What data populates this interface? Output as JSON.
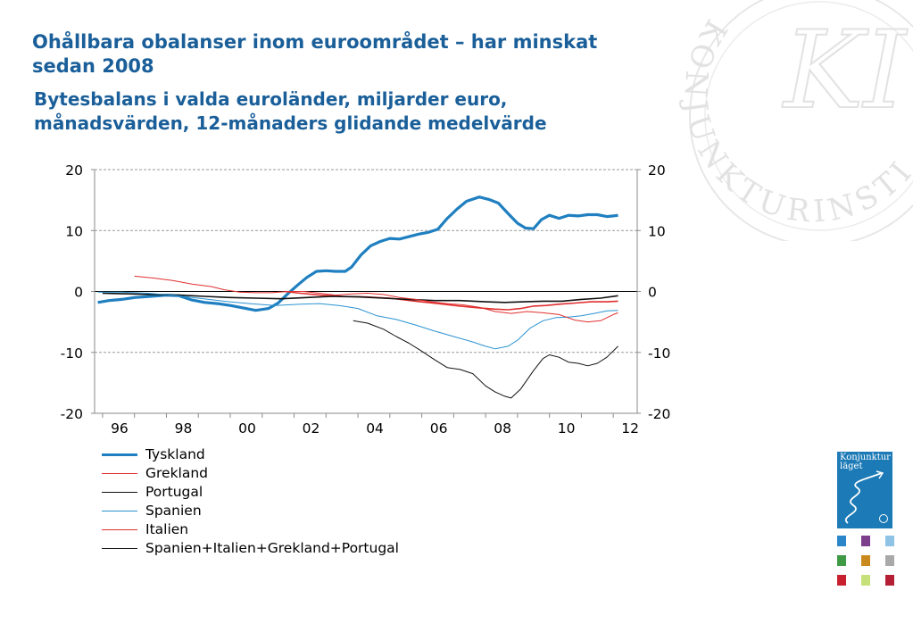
{
  "header": {
    "title": "Ohållbara obalanser inom euroområdet – har minskat sedan 2008",
    "subtitle": "Bytesbalans i valda euroländer, miljarder euro, månadsvärden, 12-månaders glidande medelvärde"
  },
  "branding": {
    "watermark_text": "KONJUNKTURINSTITUTET",
    "watermark_monogram": "KI",
    "report_cover_title_line1": "Konjunktur",
    "report_cover_title_line2": "läget",
    "report_cover_color": "#1c7ab6",
    "mini_cover_colors": [
      "#2a86c8",
      "#7b3f8c",
      "#8fc3e6",
      "#3f9a45",
      "#c9891c",
      "#a9a9a9",
      "#c8202f",
      "#c6e07a",
      "#b51f36"
    ]
  },
  "chart_data": {
    "type": "line",
    "title": "",
    "xlabel": "",
    "ylabel": "",
    "xlim": [
      1995.75,
      2012.75
    ],
    "ylim": [
      -20,
      20
    ],
    "y_ticks": [
      "20",
      "10",
      "0",
      "-10",
      "-20"
    ],
    "y_ticks_right": [
      "20",
      "10",
      "0",
      "-10",
      "-20"
    ],
    "x_tick_labels": [
      {
        "label": "96",
        "x": 1996
      },
      {
        "label": "98",
        "x": 1998
      },
      {
        "label": "00",
        "x": 2000
      },
      {
        "label": "02",
        "x": 2002
      },
      {
        "label": "04",
        "x": 2004
      },
      {
        "label": "06",
        "x": 2006
      },
      {
        "label": "08",
        "x": 2008
      },
      {
        "label": "10",
        "x": 2010
      },
      {
        "label": "12",
        "x": 2012
      }
    ],
    "grid": true,
    "legend_position": "bottom-left",
    "series": [
      {
        "name": "Tyskland",
        "color": "#1f7fc0",
        "line": "thick",
        "points": [
          [
            1995.85,
            -1.8
          ],
          [
            1996.2,
            -1.5
          ],
          [
            1996.6,
            -1.3
          ],
          [
            1997.0,
            -1.0
          ],
          [
            1997.5,
            -0.8
          ],
          [
            1998.0,
            -0.6
          ],
          [
            1998.4,
            -0.7
          ],
          [
            1998.8,
            -1.4
          ],
          [
            1999.2,
            -1.8
          ],
          [
            1999.6,
            -2.0
          ],
          [
            2000.0,
            -2.3
          ],
          [
            2000.4,
            -2.7
          ],
          [
            2000.8,
            -3.1
          ],
          [
            2001.2,
            -2.8
          ],
          [
            2001.5,
            -1.9
          ],
          [
            2001.8,
            -0.4
          ],
          [
            2002.1,
            1.0
          ],
          [
            2002.4,
            2.3
          ],
          [
            2002.7,
            3.3
          ],
          [
            2003.0,
            3.4
          ],
          [
            2003.3,
            3.3
          ],
          [
            2003.6,
            3.3
          ],
          [
            2003.8,
            4.0
          ],
          [
            2004.1,
            6.0
          ],
          [
            2004.4,
            7.5
          ],
          [
            2004.7,
            8.2
          ],
          [
            2005.0,
            8.7
          ],
          [
            2005.3,
            8.6
          ],
          [
            2005.6,
            9.0
          ],
          [
            2005.9,
            9.4
          ],
          [
            2006.2,
            9.7
          ],
          [
            2006.5,
            10.2
          ],
          [
            2006.8,
            12.0
          ],
          [
            2007.1,
            13.5
          ],
          [
            2007.4,
            14.8
          ],
          [
            2007.8,
            15.5
          ],
          [
            2008.1,
            15.1
          ],
          [
            2008.4,
            14.5
          ],
          [
            2008.7,
            12.8
          ],
          [
            2009.0,
            11.2
          ],
          [
            2009.25,
            10.4
          ],
          [
            2009.5,
            10.3
          ],
          [
            2009.75,
            11.8
          ],
          [
            2010.0,
            12.5
          ],
          [
            2010.3,
            12.0
          ],
          [
            2010.6,
            12.5
          ],
          [
            2010.9,
            12.4
          ],
          [
            2011.2,
            12.6
          ],
          [
            2011.5,
            12.6
          ],
          [
            2011.8,
            12.3
          ],
          [
            2012.0,
            12.4
          ],
          [
            2012.15,
            12.5
          ]
        ]
      },
      {
        "name": "Grekland",
        "color": "#e03030",
        "line": "medium",
        "points": [
          [
            2001.7,
            0.0
          ],
          [
            2002.2,
            -0.3
          ],
          [
            2002.8,
            -0.6
          ],
          [
            2003.5,
            -0.8
          ],
          [
            2004.2,
            -0.9
          ],
          [
            2005.0,
            -1.1
          ],
          [
            2005.8,
            -1.6
          ],
          [
            2006.5,
            -2.0
          ],
          [
            2007.2,
            -2.4
          ],
          [
            2007.8,
            -2.7
          ],
          [
            2008.3,
            -2.9
          ],
          [
            2008.7,
            -3.0
          ],
          [
            2009.1,
            -2.8
          ],
          [
            2009.5,
            -2.4
          ],
          [
            2009.9,
            -2.3
          ],
          [
            2010.3,
            -2.1
          ],
          [
            2010.8,
            -1.9
          ],
          [
            2011.3,
            -1.7
          ],
          [
            2011.8,
            -1.7
          ],
          [
            2012.15,
            -1.6
          ]
        ]
      },
      {
        "name": "Portugal",
        "color": "#111111",
        "line": "medium",
        "points": [
          [
            1996.0,
            -0.3
          ],
          [
            1996.8,
            -0.4
          ],
          [
            1997.6,
            -0.5
          ],
          [
            1998.4,
            -0.6
          ],
          [
            1999.2,
            -0.8
          ],
          [
            2000.0,
            -1.0
          ],
          [
            2000.8,
            -1.1
          ],
          [
            2001.6,
            -1.2
          ],
          [
            2002.4,
            -1.0
          ],
          [
            2003.2,
            -0.8
          ],
          [
            2004.0,
            -0.9
          ],
          [
            2004.8,
            -1.1
          ],
          [
            2005.6,
            -1.3
          ],
          [
            2006.4,
            -1.5
          ],
          [
            2007.2,
            -1.5
          ],
          [
            2008.0,
            -1.7
          ],
          [
            2008.6,
            -1.8
          ],
          [
            2009.2,
            -1.7
          ],
          [
            2009.8,
            -1.6
          ],
          [
            2010.4,
            -1.6
          ],
          [
            2011.0,
            -1.3
          ],
          [
            2011.6,
            -1.1
          ],
          [
            2012.15,
            -0.7
          ]
        ]
      },
      {
        "name": "Spanien",
        "color": "#2a93d2",
        "line": "thin",
        "points": [
          [
            1995.85,
            -0.1
          ],
          [
            1996.6,
            -0.1
          ],
          [
            1997.4,
            -0.3
          ],
          [
            1998.2,
            -0.6
          ],
          [
            1999.0,
            -1.1
          ],
          [
            1999.8,
            -1.6
          ],
          [
            2000.6,
            -2.0
          ],
          [
            2001.4,
            -2.3
          ],
          [
            2002.2,
            -2.1
          ],
          [
            2002.8,
            -2.0
          ],
          [
            2003.4,
            -2.3
          ],
          [
            2004.0,
            -2.8
          ],
          [
            2004.6,
            -4.0
          ],
          [
            2005.2,
            -4.6
          ],
          [
            2005.8,
            -5.5
          ],
          [
            2006.4,
            -6.5
          ],
          [
            2007.0,
            -7.4
          ],
          [
            2007.6,
            -8.3
          ],
          [
            2008.0,
            -9.0
          ],
          [
            2008.3,
            -9.4
          ],
          [
            2008.7,
            -9.0
          ],
          [
            2009.0,
            -8.0
          ],
          [
            2009.4,
            -6.0
          ],
          [
            2009.8,
            -4.8
          ],
          [
            2010.2,
            -4.3
          ],
          [
            2010.6,
            -4.2
          ],
          [
            2011.0,
            -4.0
          ],
          [
            2011.4,
            -3.6
          ],
          [
            2011.8,
            -3.2
          ],
          [
            2012.15,
            -3.1
          ]
        ]
      },
      {
        "name": "Italien",
        "color": "#e03030",
        "line": "thin",
        "points": [
          [
            1997.0,
            2.5
          ],
          [
            1997.6,
            2.2
          ],
          [
            1998.2,
            1.8
          ],
          [
            1998.8,
            1.2
          ],
          [
            1999.4,
            0.8
          ],
          [
            1999.8,
            0.3
          ],
          [
            2000.3,
            -0.1
          ],
          [
            2000.8,
            -0.2
          ],
          [
            2001.3,
            -0.2
          ],
          [
            2001.8,
            0.0
          ],
          [
            2002.3,
            0.0
          ],
          [
            2002.8,
            -0.3
          ],
          [
            2003.3,
            -0.6
          ],
          [
            2003.8,
            -0.4
          ],
          [
            2004.3,
            -0.3
          ],
          [
            2004.8,
            -0.5
          ],
          [
            2005.3,
            -1.0
          ],
          [
            2005.8,
            -1.3
          ],
          [
            2006.3,
            -1.7
          ],
          [
            2006.8,
            -2.0
          ],
          [
            2007.3,
            -2.2
          ],
          [
            2007.8,
            -2.6
          ],
          [
            2008.3,
            -3.3
          ],
          [
            2008.8,
            -3.6
          ],
          [
            2009.3,
            -3.3
          ],
          [
            2009.8,
            -3.5
          ],
          [
            2010.3,
            -3.8
          ],
          [
            2010.8,
            -4.7
          ],
          [
            2011.2,
            -5.0
          ],
          [
            2011.6,
            -4.8
          ],
          [
            2012.0,
            -3.8
          ],
          [
            2012.15,
            -3.5
          ]
        ]
      },
      {
        "name": "Spanien+Italien+Grekland+Portugal",
        "color": "#111111",
        "line": "thin",
        "points": [
          [
            2003.85,
            -4.8
          ],
          [
            2004.3,
            -5.2
          ],
          [
            2004.8,
            -6.2
          ],
          [
            2005.2,
            -7.4
          ],
          [
            2005.6,
            -8.5
          ],
          [
            2006.0,
            -9.8
          ],
          [
            2006.4,
            -11.2
          ],
          [
            2006.8,
            -12.5
          ],
          [
            2007.2,
            -12.8
          ],
          [
            2007.6,
            -13.5
          ],
          [
            2008.0,
            -15.5
          ],
          [
            2008.3,
            -16.5
          ],
          [
            2008.6,
            -17.2
          ],
          [
            2008.8,
            -17.5
          ],
          [
            2009.1,
            -16.0
          ],
          [
            2009.5,
            -13.0
          ],
          [
            2009.8,
            -11.0
          ],
          [
            2010.0,
            -10.4
          ],
          [
            2010.3,
            -10.8
          ],
          [
            2010.6,
            -11.6
          ],
          [
            2010.9,
            -11.8
          ],
          [
            2011.2,
            -12.2
          ],
          [
            2011.5,
            -11.8
          ],
          [
            2011.8,
            -10.8
          ],
          [
            2012.15,
            -9.0
          ]
        ]
      }
    ]
  }
}
